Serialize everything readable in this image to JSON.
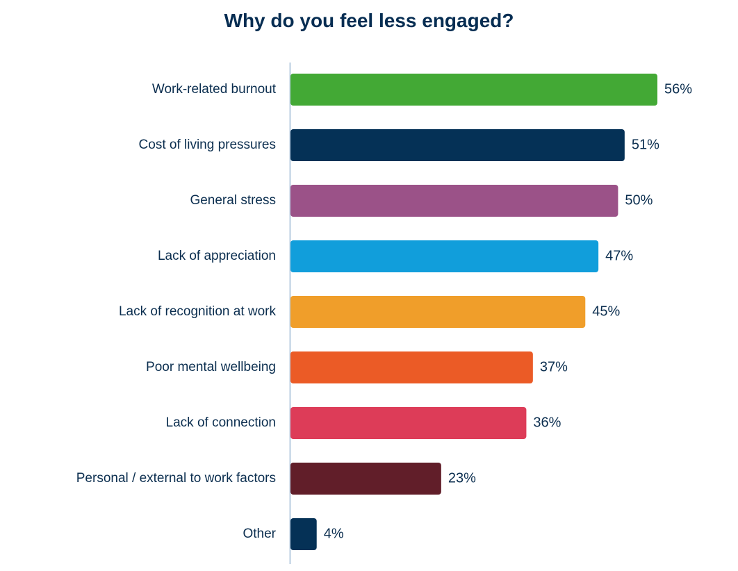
{
  "chart_data": {
    "type": "bar",
    "orientation": "horizontal",
    "title": "Why do you feel less engaged?",
    "xlabel": "",
    "ylabel": "",
    "xlim": [
      0,
      56
    ],
    "grid": false,
    "legend": "none",
    "categories": [
      "Work-related burnout",
      "Cost of living pressures",
      "General stress",
      "Lack of appreciation",
      "Lack of recognition at work",
      "Poor mental wellbeing",
      "Lack of connection",
      "Personal / external to work factors",
      "Other"
    ],
    "values": [
      56,
      51,
      50,
      47,
      45,
      37,
      36,
      23,
      4
    ],
    "value_labels": [
      "56%",
      "51%",
      "50%",
      "47%",
      "45%",
      "37%",
      "36%",
      "23%",
      "4%"
    ],
    "colors": [
      "#43a935",
      "#053156",
      "#9b5288",
      "#119edb",
      "#f09e2a",
      "#eb5b26",
      "#dd3c58",
      "#611e29",
      "#053156"
    ]
  },
  "colors": {
    "title": "#062d52",
    "text": "#0b2e4f",
    "axis": "#b9cde0"
  }
}
